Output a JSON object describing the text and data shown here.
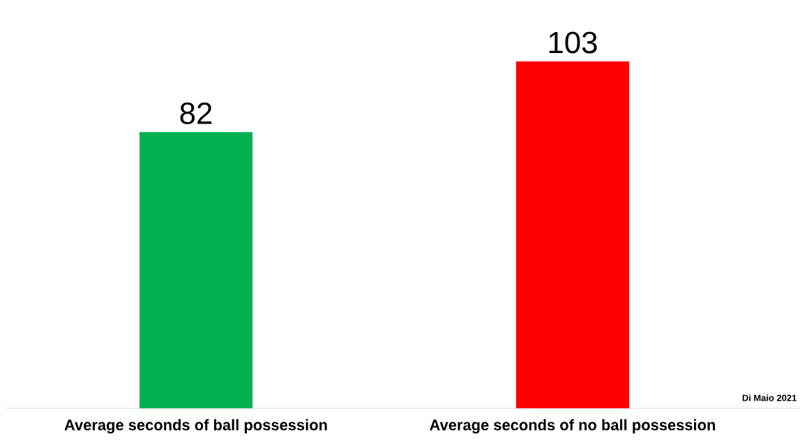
{
  "chart_data": {
    "type": "bar",
    "categories": [
      "Average seconds of ball possession",
      "Average seconds of no ball possession"
    ],
    "values": [
      82,
      103
    ],
    "colors": [
      "#00b050",
      "#ff0000"
    ],
    "data_labels": true,
    "annotations": [
      "Di Maio 2021"
    ]
  }
}
